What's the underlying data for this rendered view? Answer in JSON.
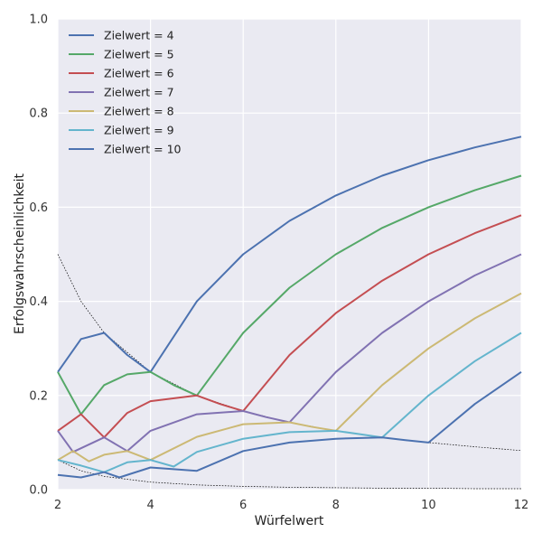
{
  "chart_data": {
    "type": "line",
    "xlabel": "Würfelwert",
    "ylabel": "Erfolgswahrscheinlichkeit",
    "xlim": [
      2,
      12
    ],
    "ylim": [
      0.0,
      1.0
    ],
    "xticks": [
      "2",
      "4",
      "6",
      "8",
      "10",
      "12"
    ],
    "yticks": [
      "0.0",
      "0.2",
      "0.4",
      "0.6",
      "0.8",
      "1.0"
    ],
    "grid": true,
    "legend_position": "top-left",
    "series": [
      {
        "name": "Zielwert = 4",
        "color": "#4c72b0",
        "x": [
          2,
          2.5,
          3,
          3.5,
          4,
          5,
          6,
          7,
          8,
          9,
          10,
          11,
          12
        ],
        "y": [
          0.25,
          0.32,
          0.333,
          0.286,
          0.25,
          0.4,
          0.5,
          0.571,
          0.625,
          0.667,
          0.7,
          0.727,
          0.75
        ]
      },
      {
        "name": "Zielwert = 5",
        "color": "#55a868",
        "x": [
          2,
          2.5,
          3,
          3.5,
          4,
          4.5,
          5,
          6,
          7,
          8,
          9,
          10,
          11,
          12
        ],
        "y": [
          0.25,
          0.16,
          0.222,
          0.245,
          0.25,
          0.222,
          0.2,
          0.333,
          0.429,
          0.5,
          0.556,
          0.6,
          0.636,
          0.667
        ]
      },
      {
        "name": "Zielwert = 6",
        "color": "#c44e52",
        "x": [
          2,
          2.5,
          3,
          3.5,
          4,
          5,
          5.5,
          6,
          7,
          8,
          9,
          10,
          11,
          12
        ],
        "y": [
          0.125,
          0.16,
          0.111,
          0.163,
          0.188,
          0.2,
          0.182,
          0.167,
          0.286,
          0.375,
          0.444,
          0.5,
          0.545,
          0.583
        ]
      },
      {
        "name": "Zielwert = 7",
        "color": "#8172b2",
        "x": [
          2,
          2.33,
          3,
          3.5,
          4,
          5,
          6,
          6.5,
          7,
          8,
          9,
          10,
          11,
          12
        ],
        "y": [
          0.125,
          0.08,
          0.111,
          0.082,
          0.125,
          0.16,
          0.167,
          0.154,
          0.143,
          0.25,
          0.333,
          0.4,
          0.455,
          0.5
        ]
      },
      {
        "name": "Zielwert = 8",
        "color": "#ccb974",
        "x": [
          2,
          2.33,
          2.67,
          3,
          3.5,
          4,
          5,
          6,
          7,
          7.5,
          8,
          9,
          10,
          11,
          12
        ],
        "y": [
          0.063,
          0.082,
          0.06,
          0.074,
          0.082,
          0.063,
          0.112,
          0.139,
          0.143,
          0.133,
          0.125,
          0.222,
          0.3,
          0.364,
          0.417
        ]
      },
      {
        "name": "Zielwert = 9",
        "color": "#64b5cd",
        "x": [
          2,
          2.5,
          3,
          3.5,
          4,
          4.5,
          5,
          6,
          7,
          8,
          8.5,
          9,
          10,
          11,
          12
        ],
        "y": [
          0.063,
          0.051,
          0.037,
          0.058,
          0.063,
          0.049,
          0.08,
          0.108,
          0.122,
          0.125,
          0.118,
          0.111,
          0.2,
          0.273,
          0.333
        ]
      },
      {
        "name": "Zielwert = 10",
        "color": "#4c72b0",
        "x": [
          2,
          2.5,
          3,
          3.33,
          4,
          5,
          6,
          7,
          8,
          9,
          9.5,
          10,
          11,
          12
        ],
        "y": [
          0.031,
          0.026,
          0.037,
          0.026,
          0.047,
          0.04,
          0.082,
          0.1,
          0.108,
          0.111,
          0.105,
          0.1,
          0.182,
          0.25
        ]
      }
    ],
    "reference_lines": [
      {
        "style": "dotted",
        "color": "#000000",
        "x": [
          2,
          2.5,
          3,
          4,
          5,
          6,
          7,
          8,
          9,
          10,
          11,
          12
        ],
        "y": [
          0.5,
          0.4,
          0.333,
          0.25,
          0.2,
          0.167,
          0.143,
          0.125,
          0.111,
          0.1,
          0.091,
          0.083
        ]
      },
      {
        "style": "dotted",
        "color": "#000000",
        "x": [
          2,
          2.5,
          3,
          4,
          5,
          6,
          7,
          8,
          9,
          10,
          11,
          12
        ],
        "y": [
          0.063,
          0.04,
          0.028,
          0.016,
          0.01,
          0.007,
          0.005,
          0.004,
          0.003,
          0.003,
          0.002,
          0.002
        ]
      }
    ]
  }
}
